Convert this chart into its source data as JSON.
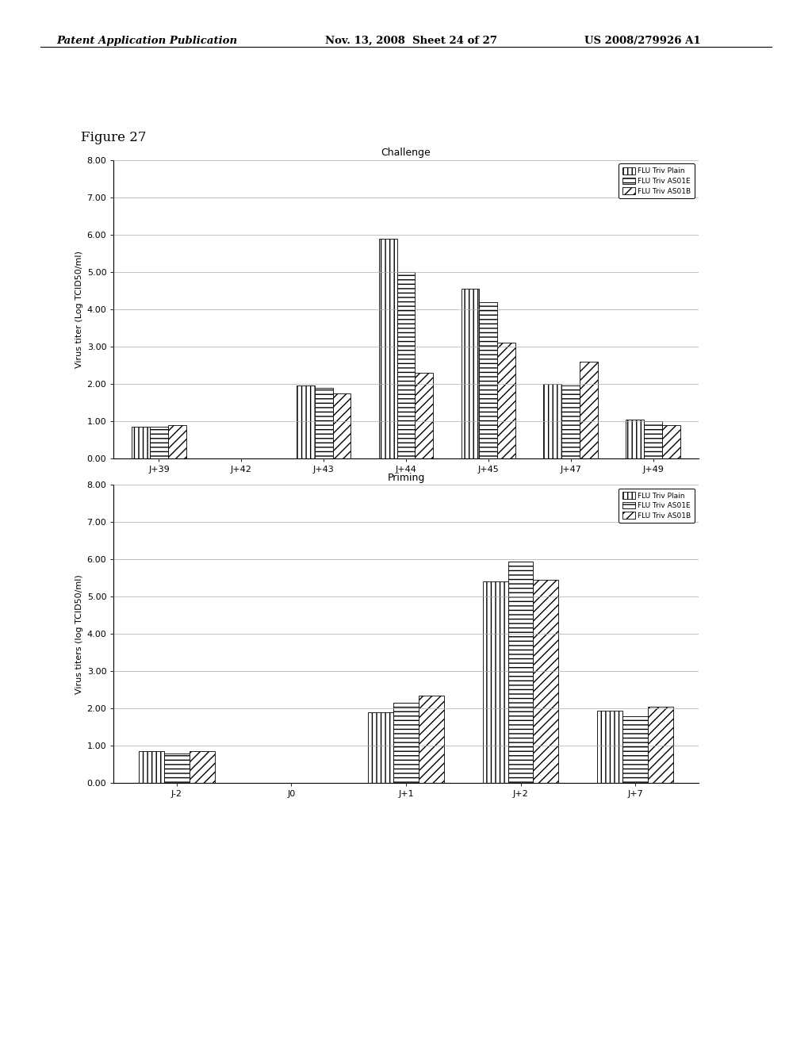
{
  "challenge": {
    "title": "Challenge",
    "xlabel": "",
    "ylabel": "Virus titer (Log TCID50/ml)",
    "ylim": [
      0,
      8.0
    ],
    "yticks": [
      0.0,
      1.0,
      2.0,
      3.0,
      4.0,
      5.0,
      6.0,
      7.0,
      8.0
    ],
    "ytick_labels": [
      "0.00",
      "1.00",
      "2.00",
      "3.00",
      "4.00",
      "5.00",
      "6.00",
      "7.00",
      "8.00"
    ],
    "categories": [
      "J+39",
      "J+42",
      "J+43",
      "J+44",
      "J+45",
      "J+47",
      "J+49"
    ],
    "series": [
      {
        "label": "FLU Triv Plain",
        "values": [
          0.85,
          0.0,
          1.95,
          5.9,
          4.55,
          2.0,
          1.05
        ],
        "hatch": "|||",
        "facecolor": "white",
        "edgecolor": "black"
      },
      {
        "label": "FLU Triv AS01E",
        "values": [
          0.85,
          0.0,
          1.9,
          5.0,
          4.2,
          1.95,
          1.0
        ],
        "hatch": "---",
        "facecolor": "white",
        "edgecolor": "black"
      },
      {
        "label": "FLU Triv AS01B",
        "values": [
          0.9,
          0.0,
          1.75,
          2.3,
          3.1,
          2.6,
          0.9
        ],
        "hatch": "///",
        "facecolor": "white",
        "edgecolor": "black"
      }
    ]
  },
  "priming": {
    "title": "Priming",
    "xlabel": "",
    "ylabel": "Virus titers (log TCID50/ml)",
    "ylim": [
      0,
      8.0
    ],
    "yticks": [
      0.0,
      1.0,
      2.0,
      3.0,
      4.0,
      5.0,
      6.0,
      7.0,
      8.0
    ],
    "ytick_labels": [
      "0.00",
      "1.00",
      "2.00",
      "3.00",
      "4.00",
      "5.00",
      "6.00",
      "7.00",
      "8.00"
    ],
    "categories": [
      "J-2",
      "J0",
      "J+1",
      "J+2",
      "J+7"
    ],
    "series": [
      {
        "label": "FLU Triv Plain",
        "values": [
          0.85,
          0.0,
          1.9,
          5.4,
          1.95
        ],
        "hatch": "|||",
        "facecolor": "white",
        "edgecolor": "black"
      },
      {
        "label": "FLU Triv AS01E",
        "values": [
          0.8,
          0.0,
          2.15,
          5.95,
          1.8
        ],
        "hatch": "---",
        "facecolor": "white",
        "edgecolor": "black"
      },
      {
        "label": "FLU Triv AS01B",
        "values": [
          0.85,
          0.0,
          2.35,
          5.45,
          2.05
        ],
        "hatch": "///",
        "facecolor": "white",
        "edgecolor": "black"
      }
    ]
  },
  "figure_label": "Figure 27",
  "header_left": "Patent Application Publication",
  "header_mid": "Nov. 13, 2008  Sheet 24 of 27",
  "header_right": "US 2008/279926 A1",
  "bg_color": "#ffffff",
  "bar_width": 0.22,
  "legend_labels": [
    "FLU Triv Plain",
    "FLU Triv AS01E",
    "FLU Triv AS01B"
  ],
  "legend_hatches": [
    "|||",
    "---",
    "///"
  ]
}
